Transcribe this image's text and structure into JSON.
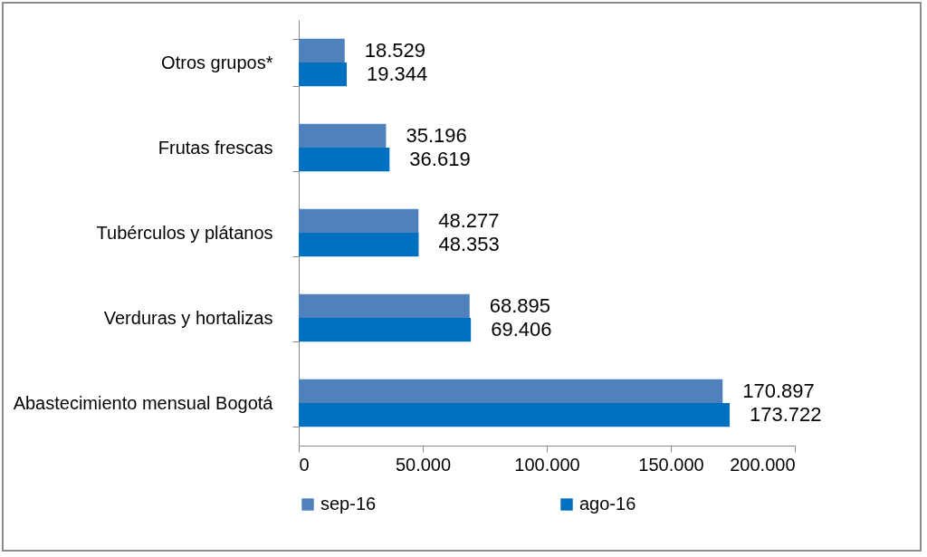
{
  "chart_data": {
    "type": "bar",
    "orientation": "horizontal",
    "categories": [
      "Otros grupos*",
      "Frutas frescas",
      "Tubérculos y plátanos",
      "Verduras y hortalizas",
      "Abastecimiento mensual Bogotá"
    ],
    "series": [
      {
        "name": "sep-16",
        "color": "#4f81bd",
        "values": [
          18529,
          35196,
          48277,
          68895,
          170897
        ],
        "value_labels": [
          "18.529",
          "35.196",
          "48.277",
          "68.895",
          "170.897"
        ]
      },
      {
        "name": "ago-16",
        "color": "#0070c0",
        "values": [
          19344,
          36619,
          48353,
          69406,
          173722
        ],
        "value_labels": [
          "19.344",
          "36.619",
          "48.353",
          "69.406",
          "173.722"
        ]
      }
    ],
    "xlim": [
      0,
      200000
    ],
    "xticks": [
      0,
      {
        "value": 50000,
        "label": "50.000"
      },
      {
        "value": 100000,
        "label": "100.000"
      },
      {
        "value": 150000,
        "label": "150.000"
      },
      {
        "value": 200000,
        "label": "200.000"
      }
    ],
    "grid": false,
    "legend": "bottom"
  }
}
